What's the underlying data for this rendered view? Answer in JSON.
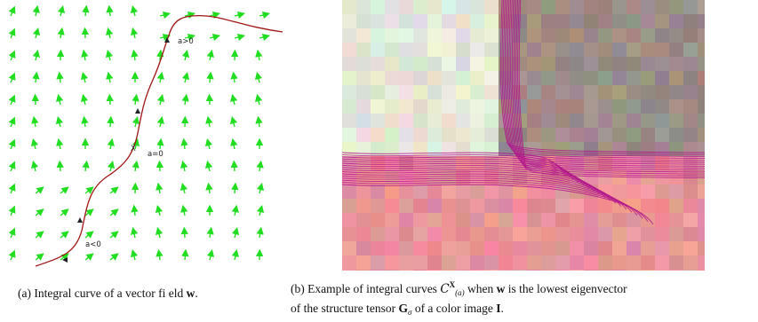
{
  "figure_a": {
    "labels": {
      "a_pos": "a>0",
      "x": "X",
      "a_zero": "a=0",
      "a_neg": "a<0"
    },
    "colors": {
      "arrows": "#22dd22",
      "curve": "#a01414"
    },
    "caption": {
      "prefix": "(a) Integral curve of a vector fi eld ",
      "w": "w",
      "suffix": "."
    }
  },
  "figure_b": {
    "colors": {
      "curves": "#b0148c",
      "background_top_left": "#e4e7d8",
      "background_top_right": "#9d8f88",
      "background_bottom": "#e8959a"
    },
    "caption": {
      "prefix": "(b) Example of integral curves ",
      "c": "C",
      "c_sup": "X",
      "c_sub": "(a)",
      "mid": " when ",
      "w": "w",
      "mid2": " is the lowest eigenvector",
      "line2_prefix": "of the structure tensor ",
      "g": "G",
      "g_sub": "σ",
      "line2_mid": " of a color image ",
      "i": "I",
      "line2_suffix": "."
    }
  }
}
